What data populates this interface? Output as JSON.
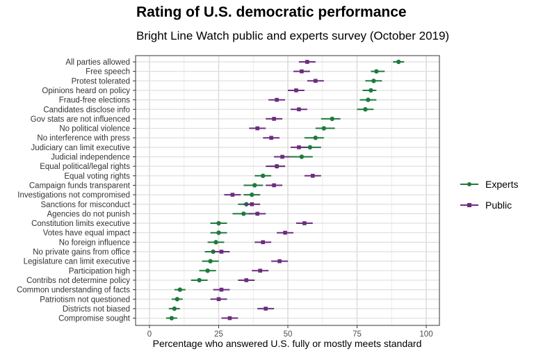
{
  "chart_data": {
    "type": "dot-interval",
    "title": "Rating of U.S. democratic performance",
    "subtitle": "Bright Line Watch public and experts survey (October 2019)",
    "xlabel": "Percentage who answered U.S. fully or mostly meets standard",
    "xlim": [
      0,
      100
    ],
    "xticks": [
      0,
      25,
      50,
      75,
      100
    ],
    "grid": true,
    "legend_position": "right",
    "categories": [
      "All parties allowed",
      "Free speech",
      "Protest tolerated",
      "Opinions heard on policy",
      "Fraud-free elections",
      "Candidates disclose info",
      "Gov stats are not influenced",
      "No political violence",
      "No interference with press",
      "Judiciary can limit executive",
      "Judicial independence",
      "Equal political/legal rights",
      "Equal voting rights",
      "Campaign funds transparent",
      "Investigations not compromised",
      "Sanctions for misconduct",
      "Agencies do not punish",
      "Constitution limits executive",
      "Votes have equal impact",
      "No foreign influence",
      "No private gains from office",
      "Legislature can limit executive",
      "Participation high",
      "Contribs not determine policy",
      "Common understanding of facts",
      "Patriotism not questioned",
      "Districts not biased",
      "Compromise sought"
    ],
    "series": [
      {
        "name": "Experts",
        "color": "#1e7a3c",
        "marker": "circle",
        "values": [
          90,
          82,
          81,
          80,
          79,
          78,
          66,
          63,
          60,
          58,
          55,
          46,
          41,
          38,
          37,
          35,
          34,
          25,
          25,
          24,
          23,
          22,
          21,
          18,
          11,
          10,
          9,
          8
        ],
        "ci_low": [
          88,
          80,
          78,
          77,
          76,
          75,
          62,
          60,
          56,
          54,
          51,
          43,
          38,
          34,
          34,
          32,
          30,
          22,
          22,
          21,
          20,
          19,
          18,
          15,
          9,
          8,
          7,
          6
        ],
        "ci_high": [
          92,
          85,
          84,
          82,
          82,
          81,
          69,
          67,
          63,
          62,
          59,
          49,
          44,
          41,
          40,
          38,
          37,
          28,
          28,
          27,
          26,
          25,
          24,
          21,
          13,
          12,
          11,
          10
        ]
      },
      {
        "name": "Public",
        "color": "#6b2d7e",
        "marker": "square",
        "values": [
          57,
          55,
          60,
          53,
          46,
          54,
          45,
          39,
          44,
          54,
          48,
          46,
          59,
          45,
          30,
          37,
          39,
          56,
          49,
          41,
          26,
          47,
          40,
          35,
          26,
          25,
          42,
          29
        ],
        "ci_low": [
          54,
          52,
          57,
          50,
          43,
          51,
          42,
          36,
          41,
          51,
          45,
          42,
          56,
          42,
          27,
          34,
          36,
          53,
          46,
          38,
          23,
          44,
          37,
          32,
          23,
          22,
          39,
          26
        ],
        "ci_high": [
          60,
          58,
          63,
          56,
          49,
          57,
          48,
          42,
          47,
          57,
          51,
          49,
          62,
          48,
          33,
          40,
          42,
          59,
          52,
          44,
          29,
          50,
          43,
          38,
          29,
          28,
          45,
          32
        ]
      }
    ]
  }
}
